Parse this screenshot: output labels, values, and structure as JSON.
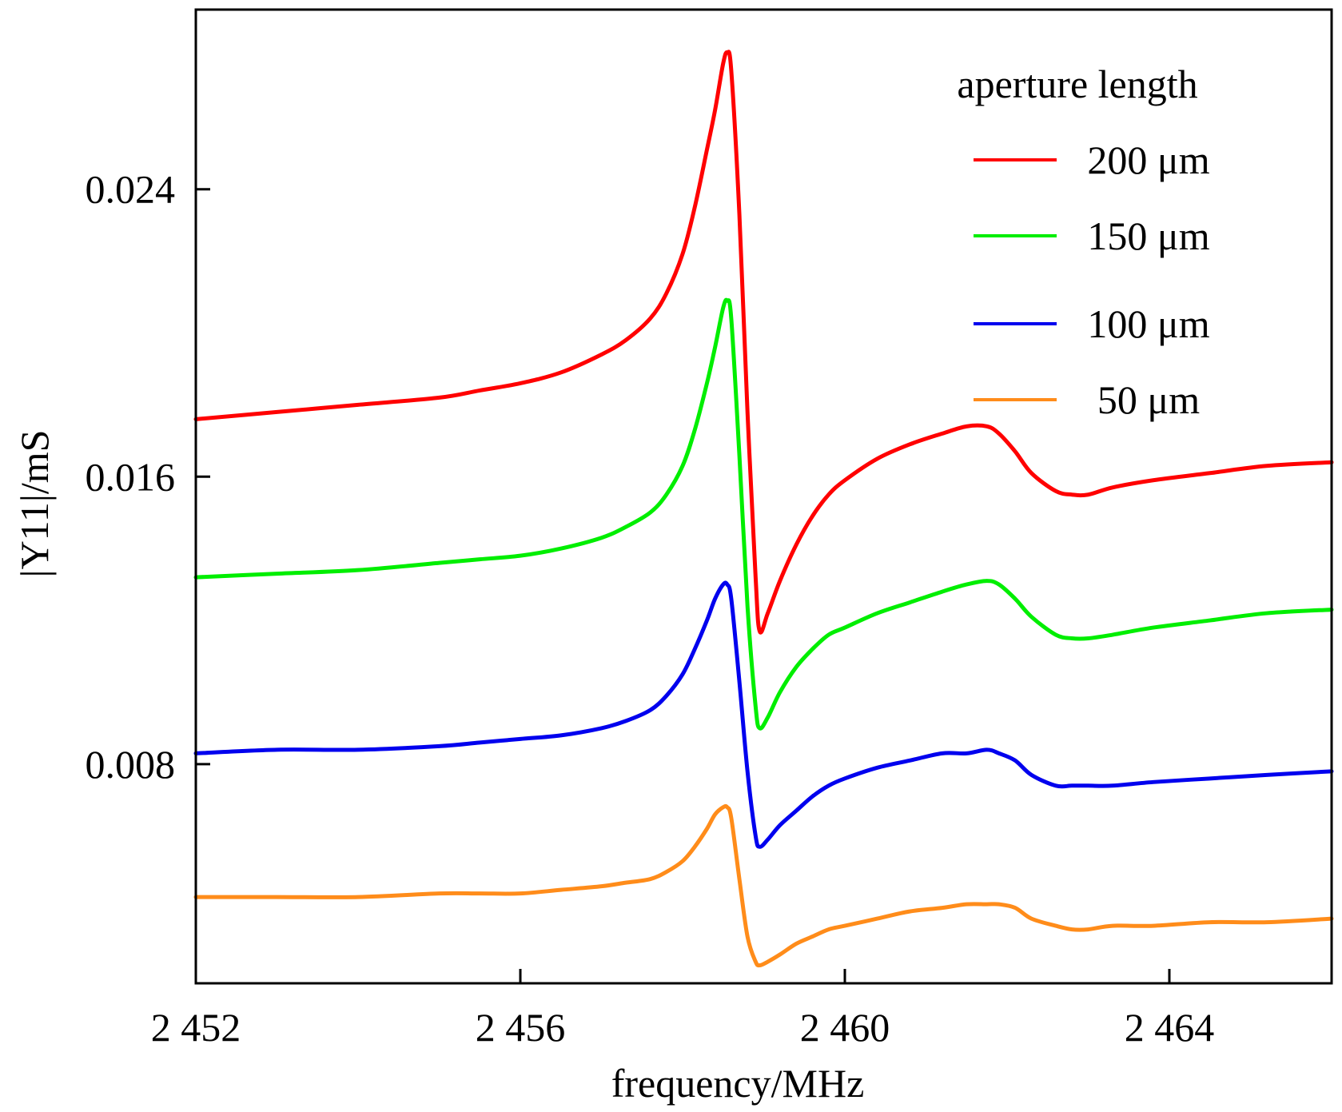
{
  "chart_data": {
    "type": "line",
    "title": "",
    "xlabel": "frequency/MHz",
    "ylabel": "|Y11|/mS",
    "xlim": [
      2452,
      2466
    ],
    "ylim": [
      0.0019,
      0.029
    ],
    "xticks": [
      2452,
      2456,
      2460,
      2464
    ],
    "xtick_labels": [
      "2 452",
      "2 456",
      "2 460",
      "2 464"
    ],
    "yticks": [
      0.008,
      0.016,
      0.024
    ],
    "ytick_labels": [
      "0.008",
      "0.016",
      "0.024"
    ],
    "grid": false,
    "legend": {
      "title": "aperture length",
      "placement": "top-right"
    },
    "series": [
      {
        "name": "200 μm",
        "color": "#ff0000",
        "x": [
          2452,
          2453,
          2454,
          2455,
          2455.5,
          2456,
          2456.5,
          2457,
          2457.3,
          2457.6,
          2457.8,
          2458,
          2458.15,
          2458.3,
          2458.4,
          2458.5,
          2458.55,
          2458.6,
          2458.7,
          2458.8,
          2458.9,
          2458.95,
          2459.05,
          2459.2,
          2459.4,
          2459.6,
          2459.8,
          2460,
          2460.4,
          2460.8,
          2461.2,
          2461.5,
          2461.75,
          2461.9,
          2462.1,
          2462.3,
          2462.6,
          2462.8,
          2463,
          2463.3,
          2463.8,
          2464.5,
          2465.2,
          2466
        ],
        "values": [
          0.0176,
          0.0178,
          0.018,
          0.0182,
          0.0184,
          0.0186,
          0.0189,
          0.0194,
          0.0198,
          0.0204,
          0.0211,
          0.0222,
          0.0235,
          0.0251,
          0.0262,
          0.0275,
          0.0278,
          0.0273,
          0.0233,
          0.0178,
          0.0132,
          0.0117,
          0.0122,
          0.0131,
          0.0141,
          0.0149,
          0.0155,
          0.0159,
          0.0165,
          0.0169,
          0.0172,
          0.0174,
          0.0174,
          0.0172,
          0.0167,
          0.0161,
          0.0156,
          0.0155,
          0.0155,
          0.0157,
          0.0159,
          0.0161,
          0.0163,
          0.0164
        ]
      },
      {
        "name": "150 μm",
        "color": "#00ee00",
        "x": [
          2452,
          2453,
          2454,
          2455,
          2455.5,
          2456,
          2456.5,
          2457,
          2457.3,
          2457.6,
          2457.8,
          2458,
          2458.15,
          2458.3,
          2458.4,
          2458.5,
          2458.55,
          2458.6,
          2458.7,
          2458.8,
          2458.9,
          2458.95,
          2459.05,
          2459.2,
          2459.4,
          2459.6,
          2459.8,
          2460,
          2460.4,
          2460.8,
          2461.2,
          2461.5,
          2461.75,
          2461.9,
          2462.1,
          2462.3,
          2462.6,
          2462.8,
          2463,
          2463.3,
          2463.8,
          2464.5,
          2465.2,
          2466
        ],
        "values": [
          0.0132,
          0.0133,
          0.0134,
          0.0136,
          0.0137,
          0.0138,
          0.014,
          0.0143,
          0.0146,
          0.015,
          0.0155,
          0.0163,
          0.0173,
          0.0186,
          0.0196,
          0.0207,
          0.0209,
          0.0204,
          0.0166,
          0.0124,
          0.0096,
          0.009,
          0.0093,
          0.01,
          0.0107,
          0.0112,
          0.0116,
          0.0118,
          0.0122,
          0.0125,
          0.0128,
          0.013,
          0.0131,
          0.013,
          0.0126,
          0.0121,
          0.0116,
          0.0115,
          0.0115,
          0.0116,
          0.0118,
          0.012,
          0.0122,
          0.0123
        ]
      },
      {
        "name": "100 μm",
        "color": "#0000ee",
        "x": [
          2452,
          2453,
          2454,
          2455,
          2455.5,
          2456,
          2456.5,
          2457,
          2457.3,
          2457.6,
          2457.8,
          2458,
          2458.15,
          2458.3,
          2458.4,
          2458.5,
          2458.55,
          2458.6,
          2458.7,
          2458.8,
          2458.9,
          2458.95,
          2459.05,
          2459.2,
          2459.4,
          2459.6,
          2459.8,
          2460,
          2460.4,
          2460.8,
          2461.2,
          2461.5,
          2461.75,
          2461.9,
          2462.1,
          2462.3,
          2462.6,
          2462.8,
          2463,
          2463.3,
          2463.8,
          2464.5,
          2465.2,
          2466
        ],
        "values": [
          0.0083,
          0.0084,
          0.0084,
          0.0085,
          0.0086,
          0.0087,
          0.0088,
          0.009,
          0.0092,
          0.0095,
          0.0099,
          0.0105,
          0.0112,
          0.012,
          0.0126,
          0.013,
          0.013,
          0.0126,
          0.0103,
          0.0078,
          0.006,
          0.0057,
          0.0059,
          0.0063,
          0.0067,
          0.0071,
          0.0074,
          0.0076,
          0.0079,
          0.0081,
          0.0083,
          0.0083,
          0.0084,
          0.0083,
          0.0081,
          0.0077,
          0.0074,
          0.0074,
          0.0074,
          0.0074,
          0.0075,
          0.0076,
          0.0077,
          0.0078
        ]
      },
      {
        "name": "50 μm",
        "color": "#ff8c1a",
        "x": [
          2452,
          2453,
          2454,
          2455,
          2455.5,
          2456,
          2456.5,
          2457,
          2457.3,
          2457.6,
          2457.8,
          2458,
          2458.15,
          2458.3,
          2458.4,
          2458.5,
          2458.55,
          2458.6,
          2458.7,
          2458.8,
          2458.9,
          2458.95,
          2459.05,
          2459.2,
          2459.4,
          2459.6,
          2459.8,
          2460,
          2460.4,
          2460.8,
          2461.2,
          2461.5,
          2461.75,
          2461.9,
          2462.1,
          2462.3,
          2462.6,
          2462.8,
          2463,
          2463.3,
          2463.8,
          2464.5,
          2465.2,
          2466
        ],
        "values": [
          0.0043,
          0.0043,
          0.0043,
          0.0044,
          0.0044,
          0.0044,
          0.0045,
          0.0046,
          0.0047,
          0.0048,
          0.005,
          0.0053,
          0.0057,
          0.0062,
          0.0066,
          0.0068,
          0.0068,
          0.0065,
          0.0048,
          0.0032,
          0.0025,
          0.0024,
          0.0025,
          0.0027,
          0.003,
          0.0032,
          0.0034,
          0.0035,
          0.0037,
          0.0039,
          0.004,
          0.0041,
          0.0041,
          0.0041,
          0.004,
          0.0037,
          0.0035,
          0.0034,
          0.0034,
          0.0035,
          0.0035,
          0.0036,
          0.0036,
          0.0037
        ]
      }
    ]
  }
}
